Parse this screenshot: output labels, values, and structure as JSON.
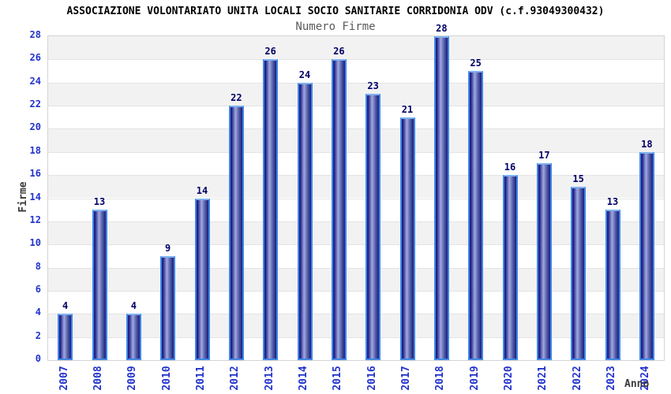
{
  "chart_data": {
    "type": "bar",
    "title": "ASSOCIAZIONE VOLONTARIATO UNITA LOCALI SOCIO SANITARIE CORRIDONIA ODV (c.f.93049300432)",
    "subtitle": "Numero Firme",
    "xlabel": "Anno",
    "ylabel": "Firme",
    "categories": [
      "2007",
      "2008",
      "2009",
      "2010",
      "2011",
      "2012",
      "2013",
      "2014",
      "2015",
      "2016",
      "2017",
      "2018",
      "2019",
      "2020",
      "2021",
      "2022",
      "2023",
      "2024"
    ],
    "values": [
      4,
      13,
      4,
      9,
      14,
      22,
      26,
      24,
      26,
      23,
      21,
      28,
      25,
      16,
      17,
      15,
      13,
      18
    ],
    "ylim": [
      0,
      28
    ],
    "yticks": [
      0,
      2,
      4,
      6,
      8,
      10,
      12,
      14,
      16,
      18,
      20,
      22,
      24,
      26,
      28
    ],
    "grid": "horizontal-bands-alternating",
    "legend": "none",
    "colors": {
      "bar_dark": "#1b1b7e",
      "bar_light": "#a0aade",
      "bar_border": "#3f87e6",
      "bar_border_top": "#7fb2f0",
      "tick_text": "#2233cc",
      "value_label": "#000066",
      "band_gray": "#f2f2f2",
      "band_white": "#ffffff",
      "grid_line": "#e3e3e3",
      "plot_border": "#d4d4d4",
      "axis_title_text": "#3a3a3a",
      "subtitle_text": "#5a5a5a",
      "title_text": "#000000"
    }
  }
}
